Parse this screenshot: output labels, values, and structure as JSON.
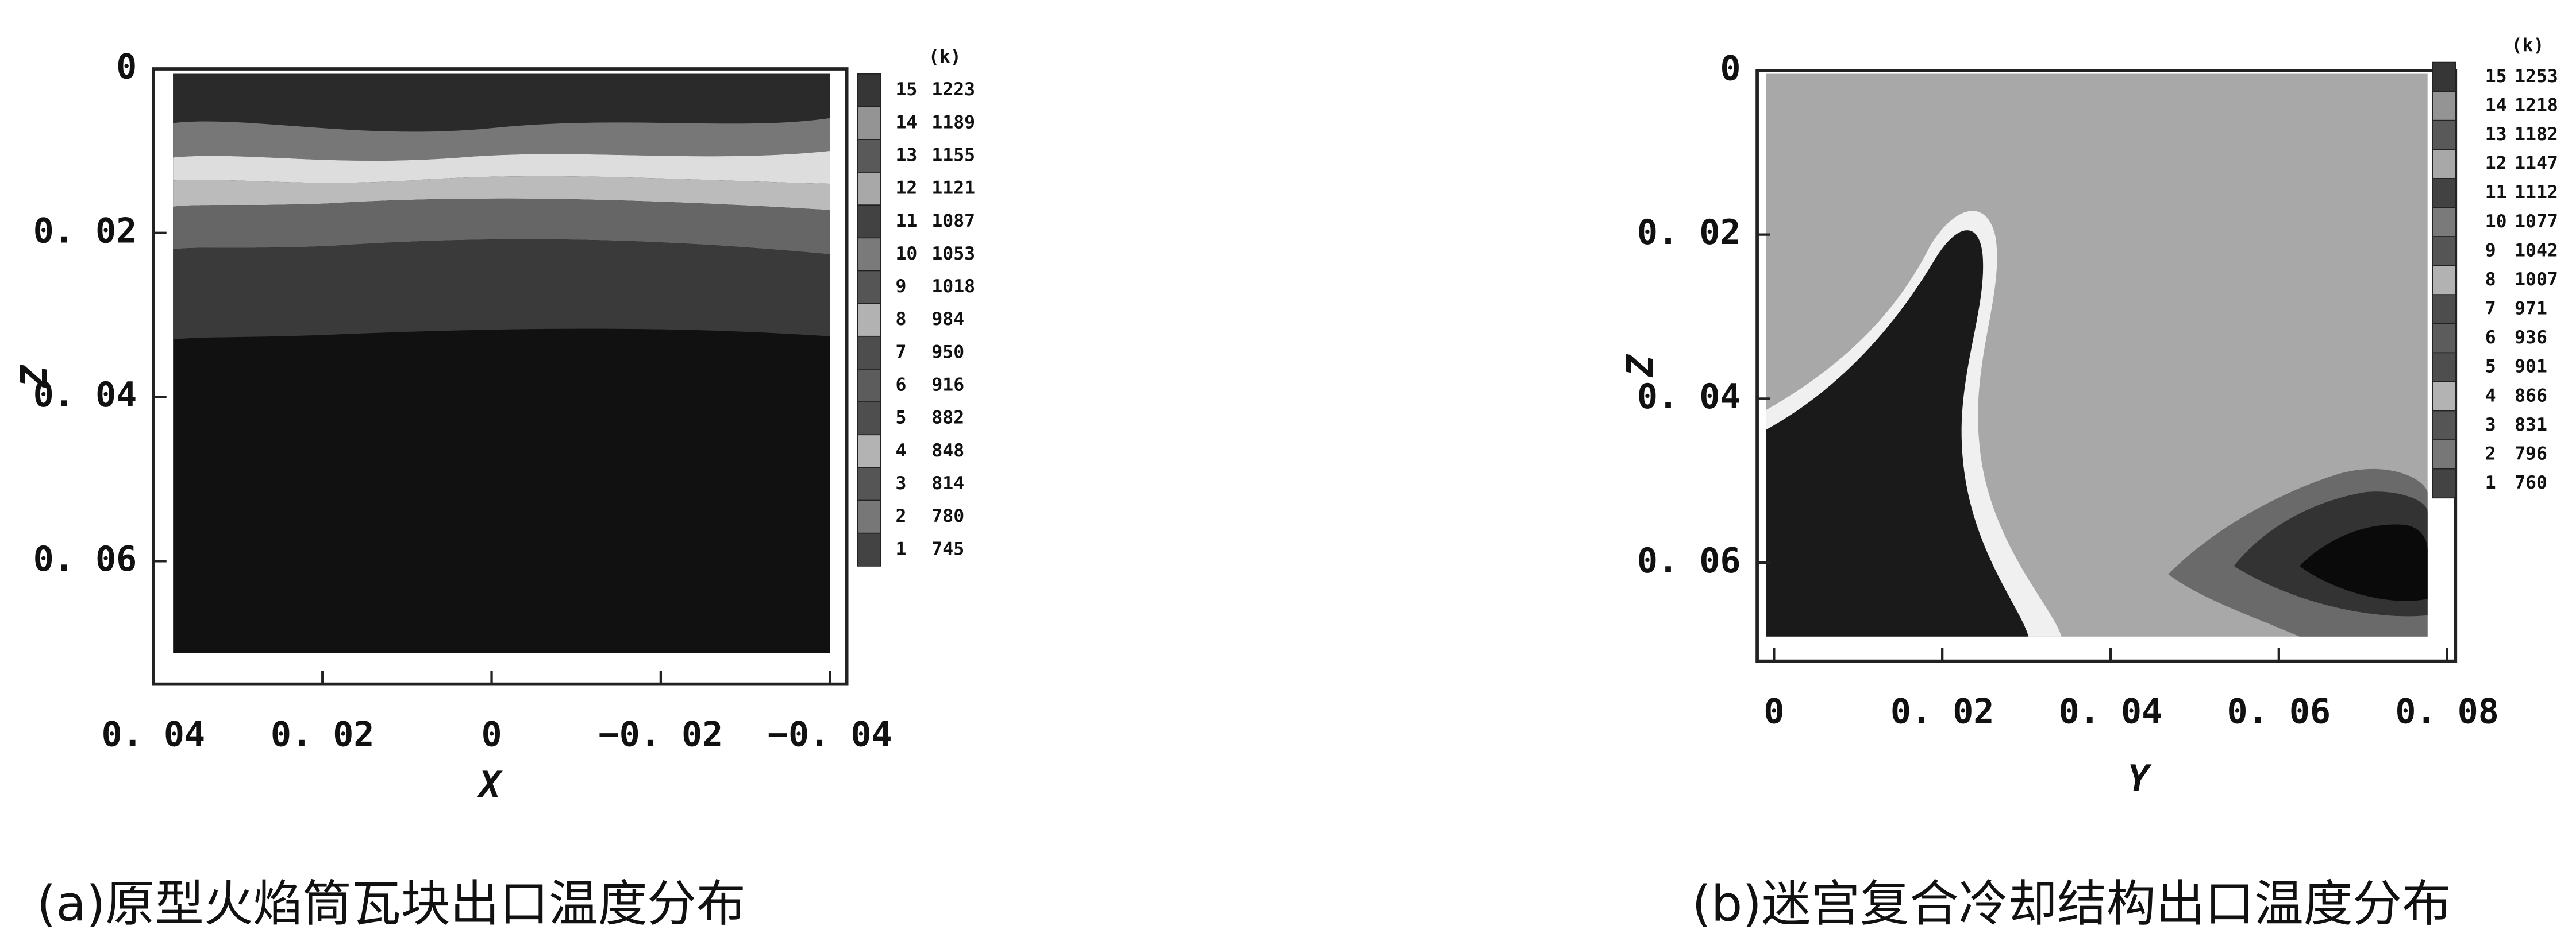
{
  "chart_data": [
    {
      "type": "contour",
      "title": "(a)原型火焰筒瓦块出口温度分布",
      "x_label": "X",
      "y_label": "Z",
      "legend_unit": "(k)",
      "xlim": [
        0.04,
        -0.042
      ],
      "ylim": [
        0.075,
        0
      ],
      "xticks": [
        {
          "value": 0.04,
          "label": "0. 04"
        },
        {
          "value": 0.02,
          "label": "0. 02"
        },
        0,
        {
          "value": -0.02,
          "label": "−0. 02"
        },
        {
          "value": -0.04,
          "label": "−0. 04"
        }
      ],
      "yticks": [
        0,
        {
          "value": 0.02,
          "label": "0. 02"
        },
        {
          "value": 0.04,
          "label": "0. 04"
        },
        {
          "value": 0.06,
          "label": "0. 06"
        }
      ],
      "legend": [
        {
          "level": 15,
          "value": 1223
        },
        {
          "level": 14,
          "value": 1189
        },
        {
          "level": 13,
          "value": 1155
        },
        {
          "level": 12,
          "value": 1121
        },
        {
          "level": 11,
          "value": 1087
        },
        {
          "level": 10,
          "value": 1053
        },
        {
          "level": 9,
          "value": 1018
        },
        {
          "level": 8,
          "value": 984
        },
        {
          "level": 7,
          "value": 950
        },
        {
          "level": 6,
          "value": 916
        },
        {
          "level": 5,
          "value": 882
        },
        {
          "level": 4,
          "value": 848
        },
        {
          "level": 3,
          "value": 814
        },
        {
          "level": 2,
          "value": 780
        },
        {
          "level": 1,
          "value": 745
        }
      ]
    },
    {
      "type": "contour",
      "title": "(b)迷宫复合冷却结构出口温度分布",
      "x_label": "Y",
      "y_label": "Z",
      "legend_unit": "(k)",
      "xlim": [
        -0.002,
        0.081
      ],
      "ylim": [
        0.072,
        0
      ],
      "xticks": [
        0,
        {
          "value": 0.02,
          "label": "0. 02"
        },
        {
          "value": 0.04,
          "label": "0. 04"
        },
        {
          "value": 0.06,
          "label": "0. 06"
        },
        {
          "value": 0.08,
          "label": "0. 08"
        }
      ],
      "yticks": [
        0,
        {
          "value": 0.02,
          "label": "0. 02"
        },
        {
          "value": 0.04,
          "label": "0. 04"
        },
        {
          "value": 0.06,
          "label": "0. 06"
        }
      ],
      "legend": [
        {
          "level": 15,
          "value": 1253
        },
        {
          "level": 14,
          "value": 1218
        },
        {
          "level": 13,
          "value": 1182
        },
        {
          "level": 12,
          "value": 1147
        },
        {
          "level": 11,
          "value": 1112
        },
        {
          "level": 10,
          "value": 1077
        },
        {
          "level": 9,
          "value": 1042
        },
        {
          "level": 8,
          "value": 1007
        },
        {
          "level": 7,
          "value": 971
        },
        {
          "level": 6,
          "value": 936
        },
        {
          "level": 5,
          "value": 901
        },
        {
          "level": 4,
          "value": 866
        },
        {
          "level": 3,
          "value": 831
        },
        {
          "level": 2,
          "value": 796
        },
        {
          "level": 1,
          "value": 760
        }
      ]
    }
  ]
}
